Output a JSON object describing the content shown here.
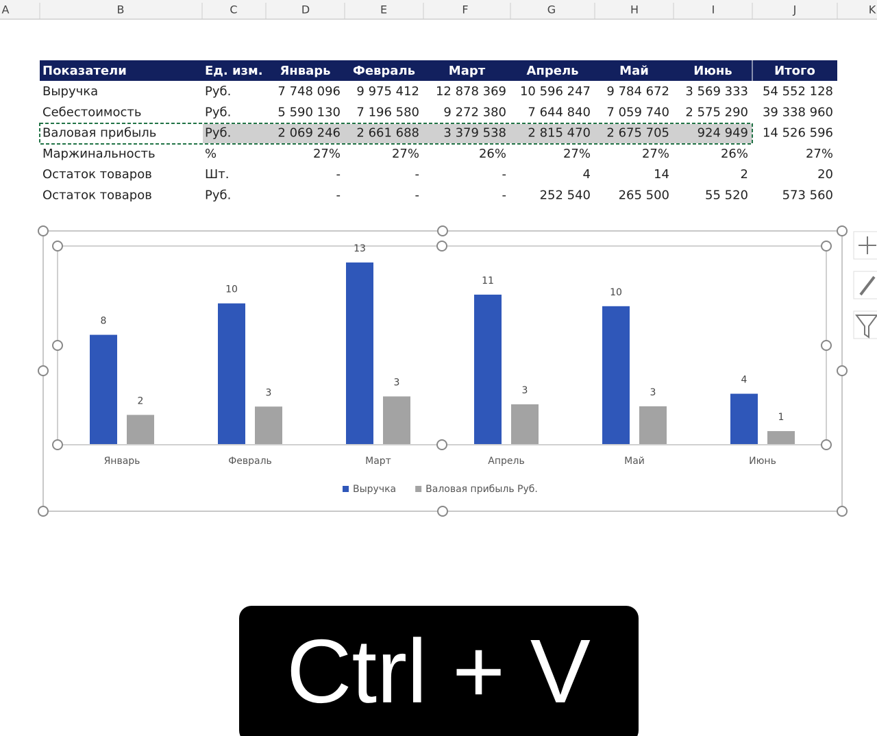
{
  "columns": [
    "A",
    "B",
    "C",
    "D",
    "E",
    "F",
    "G",
    "H",
    "I",
    "J",
    "K"
  ],
  "table": {
    "header": [
      "Показатели",
      "Ед. изм.",
      "Январь",
      "Февраль",
      "Март",
      "Апрель",
      "Май",
      "Июнь",
      "Итого"
    ],
    "rows": [
      [
        "Выручка",
        "Руб.",
        "7 748 096",
        "9 975 412",
        "12 878 369",
        "10 596 247",
        "9 784 672",
        "3 569 333",
        "54 552 128"
      ],
      [
        "Себестоимость",
        "Руб.",
        "5 590 130",
        "7 196 580",
        "9 272 380",
        "7 644 840",
        "7 059 740",
        "2 575 290",
        "39 338 960"
      ],
      [
        "Валовая прибыль",
        "Руб.",
        "2 069 246",
        "2 661 688",
        "3 379 538",
        "2 815 470",
        "2 675 705",
        "924 949",
        "14 526 596"
      ],
      [
        "Маржинальность",
        "%",
        "27%",
        "27%",
        "26%",
        "27%",
        "27%",
        "26%",
        "27%"
      ],
      [
        "Остаток товаров",
        "Шт.",
        "-",
        "-",
        "-",
        "4",
        "14",
        "2",
        "20"
      ],
      [
        "Остаток товаров",
        "Руб.",
        "-",
        "-",
        "-",
        "252 540",
        "265 500",
        "55 520",
        "573 560"
      ]
    ]
  },
  "chart_data": {
    "type": "bar",
    "categories": [
      "Январь",
      "Февраль",
      "Март",
      "Апрель",
      "Май",
      "Июнь"
    ],
    "series": [
      {
        "name": "Выручка",
        "color": "#2f57b9",
        "values": [
          7.75,
          9.98,
          12.88,
          10.6,
          9.78,
          3.57
        ],
        "value_labels": [
          "8",
          "10",
          "13",
          "11",
          "10",
          "4"
        ]
      },
      {
        "name": "Валовая прибыль Руб.",
        "color": "#a3a3a3",
        "values": [
          2.07,
          2.66,
          3.38,
          2.82,
          2.68,
          0.92
        ],
        "value_labels": [
          "2",
          "3",
          "3",
          "3",
          "3",
          "1"
        ]
      }
    ],
    "ylim": [
      0,
      14
    ],
    "legend": "bottom"
  },
  "caption": "Ctrl + V"
}
